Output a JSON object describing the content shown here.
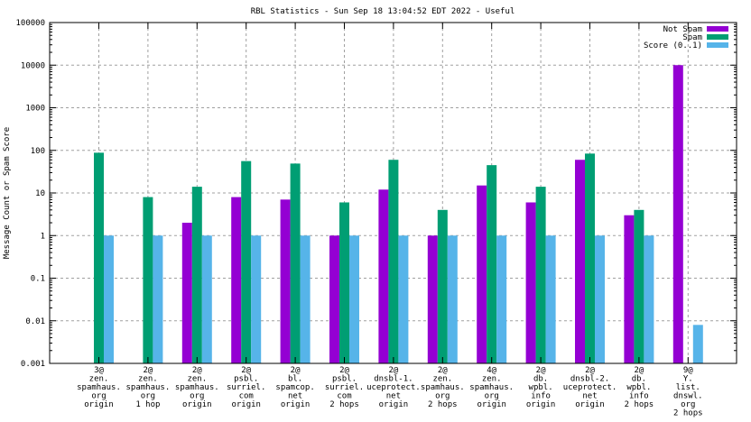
{
  "chart_data": {
    "type": "bar",
    "scale": "log",
    "title": "RBL Statistics - Sun Sep 18 13:04:52 EDT 2022 - Useful",
    "xlabel": "",
    "ylabel": "Message Count or Spam Score",
    "ylim": [
      0.001,
      100000
    ],
    "yticks": [
      "100000",
      "10000",
      "1000",
      "100",
      "10",
      "1",
      "0.1",
      "0.01",
      "0.001"
    ],
    "ytick_values": [
      100000,
      10000,
      1000,
      100,
      10,
      1,
      0.1,
      0.01,
      0.001
    ],
    "grid": true,
    "legend_position": "top-right",
    "categories": [
      [
        "3@",
        "zen.",
        "spamhaus.",
        "org",
        "origin"
      ],
      [
        "2@",
        "zen.",
        "spamhaus.",
        "org",
        "1 hop"
      ],
      [
        "2@",
        "zen.",
        "spamhaus.",
        "org",
        "origin"
      ],
      [
        "2@",
        "psbl.",
        "surriel.",
        "com",
        "origin"
      ],
      [
        "2@",
        "bl.",
        "spamcop.",
        "net",
        "origin"
      ],
      [
        "2@",
        "psbl.",
        "surriel.",
        "com",
        "2 hops"
      ],
      [
        "2@",
        "dnsbl-1.",
        "uceprotect.",
        "net",
        "origin"
      ],
      [
        "2@",
        "zen.",
        "spamhaus.",
        "org",
        "2 hops"
      ],
      [
        "4@",
        "zen.",
        "spamhaus.",
        "org",
        "origin"
      ],
      [
        "2@",
        "db.",
        "wpbl.",
        "info",
        "origin"
      ],
      [
        "2@",
        "dnsbl-2.",
        "uceprotect.",
        "net",
        "origin"
      ],
      [
        "2@",
        "db.",
        "wpbl.",
        "info",
        "2 hops"
      ],
      [
        "9@",
        "Y.",
        "list.",
        "dnswl.",
        "org",
        "2 hops"
      ]
    ],
    "series": [
      {
        "name": "Not Spam",
        "color": "#9400D3",
        "values": [
          null,
          null,
          2,
          8,
          7,
          1,
          12,
          1,
          15,
          6,
          60,
          3,
          10000
        ]
      },
      {
        "name": "Spam",
        "color": "#009E73",
        "values": [
          88,
          8,
          14,
          56,
          49,
          6,
          60,
          4,
          45,
          14,
          84,
          4,
          null
        ]
      },
      {
        "name": "Score (0..1)",
        "color": "#56B4E9",
        "values": [
          1,
          1,
          1,
          1,
          1,
          1,
          1,
          1,
          1,
          1,
          1,
          1,
          0.008
        ]
      }
    ]
  }
}
